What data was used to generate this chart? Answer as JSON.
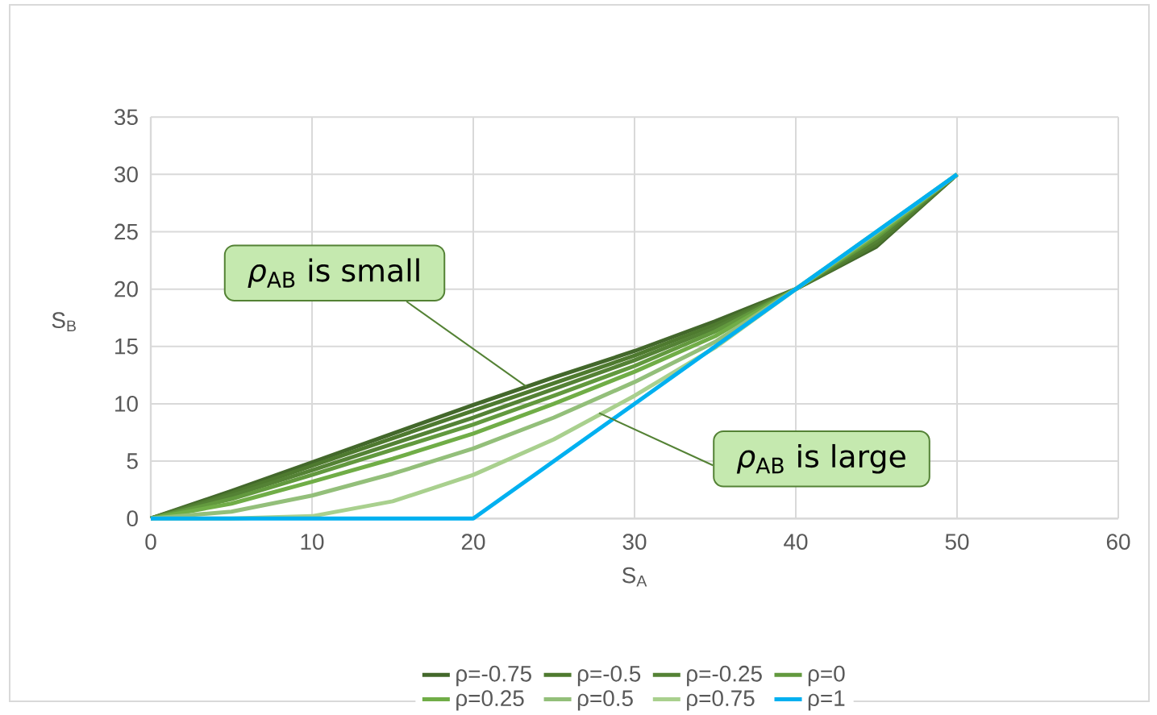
{
  "chart_data": {
    "type": "line",
    "xlabel": "S$_{A}$",
    "ylabel": "S$_{B}$",
    "x": [
      0,
      5,
      10,
      15,
      20,
      25,
      30,
      35,
      40,
      45,
      50
    ],
    "series": [
      {
        "name": "ρ=-0.75",
        "color": "#43682b",
        "values": [
          0,
          2.4,
          4.9,
          7.4,
          9.9,
          12.3,
          14.6,
          17.2,
          20,
          23.7,
          30
        ]
      },
      {
        "name": "ρ=-0.5",
        "color": "#4e7a2f",
        "values": [
          0,
          2.2,
          4.6,
          7.0,
          9.4,
          11.8,
          14.2,
          16.9,
          20,
          23.9,
          30
        ]
      },
      {
        "name": "ρ=-0.25",
        "color": "#548235",
        "values": [
          0,
          2.0,
          4.2,
          6.5,
          8.8,
          11.3,
          13.8,
          16.6,
          20,
          24.2,
          30
        ]
      },
      {
        "name": "ρ=0",
        "color": "#62993e",
        "values": [
          0,
          1.7,
          3.8,
          6.0,
          8.2,
          10.7,
          13.3,
          16.3,
          20,
          24.5,
          30
        ]
      },
      {
        "name": "ρ=0.25",
        "color": "#70ad47",
        "values": [
          0,
          1.3,
          3.2,
          5.2,
          7.4,
          10.0,
          12.8,
          15.9,
          20,
          24.7,
          30
        ]
      },
      {
        "name": "ρ=0.5",
        "color": "#93bf7a",
        "values": [
          0,
          0.6,
          2.0,
          3.9,
          6.1,
          8.8,
          11.9,
          15.4,
          20,
          24.9,
          30
        ]
      },
      {
        "name": "ρ=0.75",
        "color": "#a9d08e",
        "values": [
          0,
          0,
          0.2,
          1.5,
          3.8,
          6.9,
          10.7,
          14.9,
          20,
          25,
          30
        ]
      },
      {
        "name": "ρ=1",
        "color": "#00b0f0",
        "values": [
          0,
          0,
          0,
          0,
          0,
          5,
          10,
          15,
          20,
          25,
          30
        ]
      }
    ],
    "xlim": [
      0,
      60
    ],
    "xticks": [
      0,
      10,
      20,
      30,
      40,
      50,
      60
    ],
    "ylim": [
      0,
      35
    ],
    "yticks": [
      0,
      5,
      10,
      15,
      20,
      25,
      30,
      35
    ],
    "grid": true,
    "legend": "bottom",
    "marker": "none",
    "line_style": "solid",
    "annotations": [
      {
        "text": "*ρ*$_{AB}$ is small",
        "x": 23.3,
        "y": 11.5
      },
      {
        "text": "*ρ*$_{AB}$ is large",
        "x": 27.8,
        "y": 9.2
      }
    ]
  }
}
